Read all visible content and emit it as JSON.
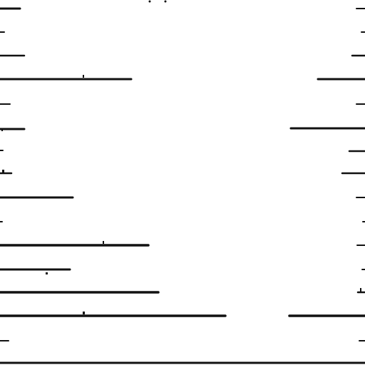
{
  "colors": {
    "background": "#ffffff",
    "ink": "#111111"
  },
  "content": {
    "visible_text": []
  }
}
